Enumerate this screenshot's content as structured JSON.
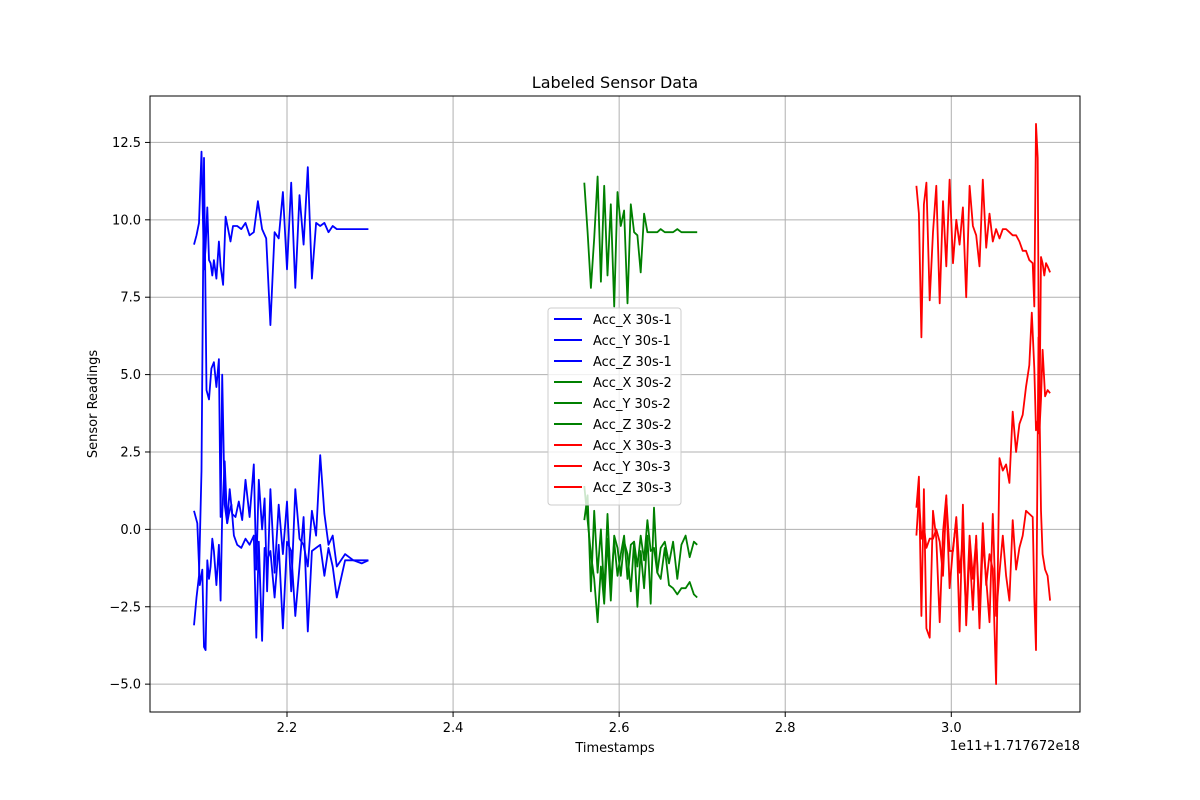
{
  "chart_data": {
    "type": "line",
    "title": "Labeled Sensor Data",
    "xlabel": "Timestamps",
    "ylabel": "Sensor Readings",
    "x_offset_label": "1e11+1.717672e18",
    "xlim": [
      2.035,
      3.155
    ],
    "ylim": [
      -5.9,
      14.0
    ],
    "x_ticks": [
      2.2,
      2.4,
      2.6,
      2.8,
      3.0
    ],
    "x_tick_labels": [
      "2.2",
      "2.4",
      "2.6",
      "2.8",
      "3.0"
    ],
    "y_ticks": [
      -5.0,
      -2.5,
      0.0,
      2.5,
      5.0,
      7.5,
      10.0,
      12.5
    ],
    "y_tick_labels": [
      "−5.0",
      "−2.5",
      "0.0",
      "2.5",
      "5.0",
      "7.5",
      "10.0",
      "12.5"
    ],
    "grid": true,
    "legend_position": "center",
    "series": [
      {
        "name": "Acc_X 30s-1",
        "color": "#0000ff",
        "x": [
          2.088,
          2.092,
          2.095,
          2.098,
          2.1,
          2.102,
          2.104,
          2.106,
          2.108,
          2.11,
          2.112,
          2.115,
          2.118,
          2.12,
          2.122,
          2.125,
          2.128,
          2.13,
          2.133,
          2.136,
          2.14,
          2.145,
          2.15,
          2.155,
          2.16,
          2.163,
          2.166,
          2.17,
          2.173,
          2.176,
          2.18,
          2.185,
          2.19,
          2.195,
          2.2,
          2.205,
          2.21,
          2.215,
          2.22,
          2.225,
          2.23,
          2.235,
          2.24,
          2.245,
          2.25,
          2.255,
          2.26,
          2.27,
          2.28,
          2.29,
          2.298
        ],
        "y": [
          0.6,
          0.2,
          -1.8,
          -1.3,
          -3.8,
          -3.9,
          -1.0,
          -1.6,
          -1.2,
          -0.3,
          -0.7,
          -1.8,
          -0.5,
          -2.3,
          0.5,
          2.2,
          0.2,
          0.5,
          0.8,
          -0.2,
          -0.5,
          -0.6,
          -0.3,
          -0.5,
          -0.2,
          -3.5,
          -0.4,
          -3.6,
          -0.6,
          -1.0,
          -0.7,
          -2.2,
          -0.5,
          -3.2,
          -0.4,
          -0.7,
          -2.8,
          -1.2,
          0.4,
          -3.3,
          -0.7,
          -0.6,
          -0.5,
          -1.5,
          -0.6,
          -1.2,
          -2.2,
          -1.0,
          -1.0,
          -1.1,
          -1.0
        ]
      },
      {
        "name": "Acc_Y 30s-1",
        "color": "#0000ff",
        "x": [
          2.088,
          2.091,
          2.094,
          2.097,
          2.1,
          2.103,
          2.106,
          2.109,
          2.112,
          2.115,
          2.118,
          2.12,
          2.122,
          2.125,
          2.128,
          2.131,
          2.134,
          2.138,
          2.142,
          2.146,
          2.15,
          2.155,
          2.16,
          2.163,
          2.166,
          2.17,
          2.173,
          2.176,
          2.18,
          2.185,
          2.19,
          2.195,
          2.2,
          2.205,
          2.21,
          2.215,
          2.22,
          2.225,
          2.23,
          2.235,
          2.24,
          2.245,
          2.25,
          2.255,
          2.26,
          2.27,
          2.28,
          2.29,
          2.298
        ],
        "y": [
          -3.1,
          -2.2,
          -1.5,
          1.9,
          12.0,
          4.5,
          4.2,
          5.2,
          5.4,
          4.6,
          5.5,
          0.4,
          5.0,
          0.8,
          0.2,
          1.3,
          0.5,
          0.4,
          0.9,
          0.3,
          1.6,
          0.4,
          2.1,
          -1.3,
          1.6,
          0.0,
          1.0,
          -2.0,
          1.3,
          -1.4,
          0.8,
          -0.8,
          0.9,
          -2.0,
          1.3,
          -0.3,
          -0.5,
          -1.2,
          0.6,
          -0.2,
          2.4,
          0.5,
          -0.5,
          -0.2,
          -1.2,
          -0.8,
          -1.0,
          -1.0,
          -1.0
        ]
      },
      {
        "name": "Acc_Z 30s-1",
        "color": "#0000ff",
        "x": [
          2.088,
          2.091,
          2.094,
          2.097,
          2.1,
          2.102,
          2.104,
          2.106,
          2.108,
          2.11,
          2.112,
          2.115,
          2.118,
          2.12,
          2.123,
          2.126,
          2.129,
          2.132,
          2.135,
          2.14,
          2.145,
          2.15,
          2.155,
          2.16,
          2.165,
          2.17,
          2.175,
          2.18,
          2.185,
          2.19,
          2.195,
          2.2,
          2.205,
          2.21,
          2.215,
          2.22,
          2.225,
          2.23,
          2.235,
          2.24,
          2.245,
          2.25,
          2.255,
          2.26,
          2.27,
          2.28,
          2.29,
          2.298
        ],
        "y": [
          9.2,
          9.5,
          9.9,
          12.2,
          8.4,
          9.1,
          10.4,
          8.7,
          8.6,
          8.2,
          8.7,
          8.1,
          9.3,
          8.5,
          7.9,
          10.1,
          9.7,
          9.3,
          9.8,
          9.8,
          9.7,
          9.9,
          9.5,
          9.6,
          10.6,
          9.7,
          9.4,
          6.6,
          9.6,
          9.4,
          10.9,
          8.4,
          11.2,
          7.8,
          10.8,
          9.2,
          11.7,
          8.1,
          9.9,
          9.8,
          9.9,
          9.6,
          9.8,
          9.7,
          9.7,
          9.7,
          9.7,
          9.7
        ]
      },
      {
        "name": "Acc_X 30s-2",
        "color": "#008000",
        "x": [
          2.558,
          2.562,
          2.566,
          2.57,
          2.574,
          2.578,
          2.582,
          2.586,
          2.59,
          2.594,
          2.598,
          2.602,
          2.606,
          2.61,
          2.614,
          2.618,
          2.622,
          2.626,
          2.63,
          2.634,
          2.638,
          2.642,
          2.646,
          2.65,
          2.655,
          2.66,
          2.665,
          2.67,
          2.675,
          2.68,
          2.685,
          2.69,
          2.694
        ],
        "y": [
          1.4,
          0.3,
          -0.8,
          -1.6,
          -3.0,
          -1.2,
          -2.4,
          -0.3,
          -2.3,
          -0.2,
          -0.6,
          -1.5,
          -0.4,
          -0.8,
          -2.0,
          -0.4,
          -2.5,
          -0.7,
          -1.9,
          -0.2,
          -2.4,
          0.7,
          -1.4,
          -1.6,
          -0.6,
          -1.8,
          -1.9,
          -2.1,
          -1.9,
          -1.9,
          -1.7,
          -2.1,
          -2.2
        ]
      },
      {
        "name": "Acc_Y 30s-2",
        "color": "#008000",
        "x": [
          2.558,
          2.562,
          2.566,
          2.57,
          2.574,
          2.578,
          2.582,
          2.586,
          2.59,
          2.594,
          2.598,
          2.602,
          2.606,
          2.61,
          2.614,
          2.618,
          2.622,
          2.626,
          2.63,
          2.634,
          2.638,
          2.642,
          2.646,
          2.65,
          2.655,
          2.66,
          2.665,
          2.67,
          2.675,
          2.68,
          2.685,
          2.69,
          2.694
        ],
        "y": [
          0.3,
          1.1,
          -2.0,
          0.6,
          -1.4,
          0.0,
          -2.1,
          0.5,
          -1.8,
          -0.4,
          -1.5,
          -0.8,
          -0.2,
          -1.6,
          -0.5,
          -0.4,
          -1.2,
          -0.2,
          -1.0,
          0.3,
          -0.7,
          -0.6,
          -1.4,
          -0.6,
          -0.4,
          -1.1,
          -0.4,
          -1.6,
          -0.5,
          -0.2,
          -0.9,
          -0.4,
          -0.5
        ]
      },
      {
        "name": "Acc_Z 30s-2",
        "color": "#008000",
        "x": [
          2.558,
          2.562,
          2.566,
          2.57,
          2.574,
          2.578,
          2.582,
          2.586,
          2.59,
          2.594,
          2.598,
          2.602,
          2.606,
          2.61,
          2.614,
          2.618,
          2.622,
          2.626,
          2.63,
          2.634,
          2.638,
          2.642,
          2.646,
          2.65,
          2.655,
          2.66,
          2.665,
          2.67,
          2.675,
          2.68,
          2.685,
          2.69,
          2.694
        ],
        "y": [
          11.2,
          9.6,
          7.8,
          9.4,
          11.4,
          8.0,
          11.1,
          8.2,
          10.5,
          7.2,
          10.9,
          9.8,
          10.3,
          7.3,
          10.5,
          9.6,
          9.5,
          8.3,
          10.2,
          9.6,
          9.6,
          9.6,
          9.6,
          9.7,
          9.6,
          9.6,
          9.6,
          9.7,
          9.6,
          9.6,
          9.6,
          9.6,
          9.6
        ]
      },
      {
        "name": "Acc_X 30s-3",
        "color": "#ff0000",
        "x": [
          2.958,
          2.961,
          2.964,
          2.967,
          2.97,
          2.974,
          2.978,
          2.982,
          2.986,
          2.99,
          2.994,
          2.998,
          3.002,
          3.006,
          3.01,
          3.014,
          3.018,
          3.022,
          3.026,
          3.03,
          3.034,
          3.038,
          3.042,
          3.046,
          3.05,
          3.054,
          3.058,
          3.062,
          3.066,
          3.07,
          3.074,
          3.078,
          3.082,
          3.086,
          3.09,
          3.094,
          3.098,
          3.1,
          3.102,
          3.105,
          3.108,
          3.11,
          3.113,
          3.116,
          3.119
        ],
        "y": [
          0.7,
          1.7,
          -2.8,
          1.3,
          -3.2,
          -3.5,
          0.6,
          -0.3,
          -3.0,
          -0.1,
          1.1,
          -1.9,
          -0.6,
          0.3,
          -3.3,
          0.8,
          -3.1,
          -0.7,
          -2.6,
          -0.2,
          -3.2,
          -0.4,
          -1.6,
          -3.0,
          0.5,
          -2.8,
          -1.4,
          -0.2,
          -1.5,
          -2.3,
          0.3,
          -1.3,
          -0.6,
          -0.2,
          0.6,
          0.5,
          0.4,
          -2.2,
          -3.9,
          6.2,
          0.6,
          -0.8,
          -1.3,
          -1.5,
          -2.3
        ]
      },
      {
        "name": "Acc_Y 30s-3",
        "color": "#ff0000",
        "x": [
          2.958,
          2.961,
          2.964,
          2.967,
          2.97,
          2.974,
          2.978,
          2.982,
          2.986,
          2.99,
          2.994,
          2.998,
          3.002,
          3.006,
          3.01,
          3.014,
          3.018,
          3.022,
          3.026,
          3.03,
          3.034,
          3.038,
          3.042,
          3.046,
          3.05,
          3.054,
          3.058,
          3.062,
          3.066,
          3.07,
          3.074,
          3.078,
          3.082,
          3.086,
          3.09,
          3.094,
          3.097,
          3.1,
          3.102,
          3.104,
          3.106,
          3.108,
          3.11,
          3.113,
          3.116,
          3.119
        ],
        "y": [
          -0.2,
          1.1,
          -0.3,
          0.1,
          -0.6,
          -0.3,
          -0.3,
          0.0,
          -0.4,
          -1.5,
          1.0,
          -0.7,
          -0.7,
          0.4,
          -1.4,
          -0.3,
          -2.8,
          -0.2,
          -1.6,
          -0.3,
          -2.7,
          0.2,
          -1.8,
          -0.8,
          -1.3,
          -5.0,
          2.3,
          1.9,
          2.1,
          1.5,
          3.8,
          2.5,
          3.4,
          3.7,
          4.6,
          5.3,
          7.0,
          5.2,
          3.2,
          3.5,
          3.1,
          4.2,
          5.8,
          4.3,
          4.5,
          4.4
        ]
      },
      {
        "name": "Acc_Z 30s-3",
        "color": "#ff0000",
        "x": [
          2.958,
          2.961,
          2.964,
          2.967,
          2.97,
          2.974,
          2.978,
          2.982,
          2.986,
          2.99,
          2.994,
          2.998,
          3.002,
          3.006,
          3.01,
          3.014,
          3.018,
          3.022,
          3.026,
          3.03,
          3.034,
          3.038,
          3.042,
          3.046,
          3.05,
          3.054,
          3.058,
          3.062,
          3.066,
          3.07,
          3.074,
          3.078,
          3.082,
          3.086,
          3.09,
          3.094,
          3.098,
          3.1,
          3.102,
          3.104,
          3.106,
          3.108,
          3.11,
          3.112,
          3.114,
          3.116,
          3.119
        ],
        "y": [
          11.1,
          10.2,
          6.2,
          10.5,
          11.2,
          7.4,
          9.6,
          11.1,
          7.3,
          10.6,
          8.5,
          11.3,
          8.6,
          10.0,
          9.2,
          10.4,
          7.5,
          11.1,
          9.8,
          9.5,
          8.5,
          11.3,
          9.1,
          10.2,
          9.3,
          9.7,
          9.4,
          9.7,
          9.7,
          9.6,
          9.5,
          9.5,
          9.3,
          9.0,
          9.0,
          8.7,
          8.6,
          7.2,
          13.1,
          12.0,
          3.1,
          8.8,
          8.6,
          8.2,
          8.6,
          8.5,
          8.3
        ]
      }
    ]
  }
}
